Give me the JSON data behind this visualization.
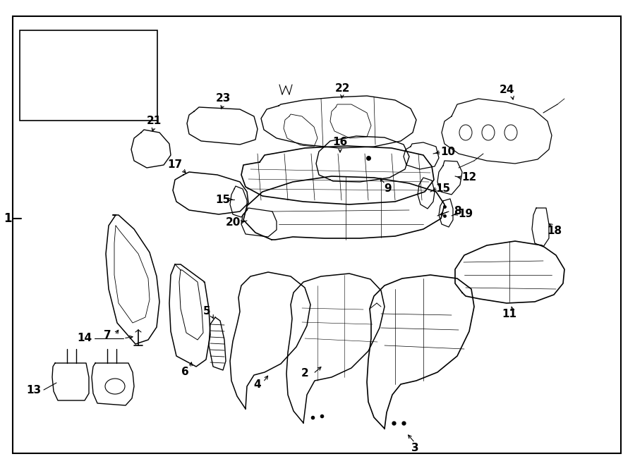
{
  "fig_width": 9.0,
  "fig_height": 6.61,
  "bg_color": "#ffffff",
  "line_color": "#000000"
}
